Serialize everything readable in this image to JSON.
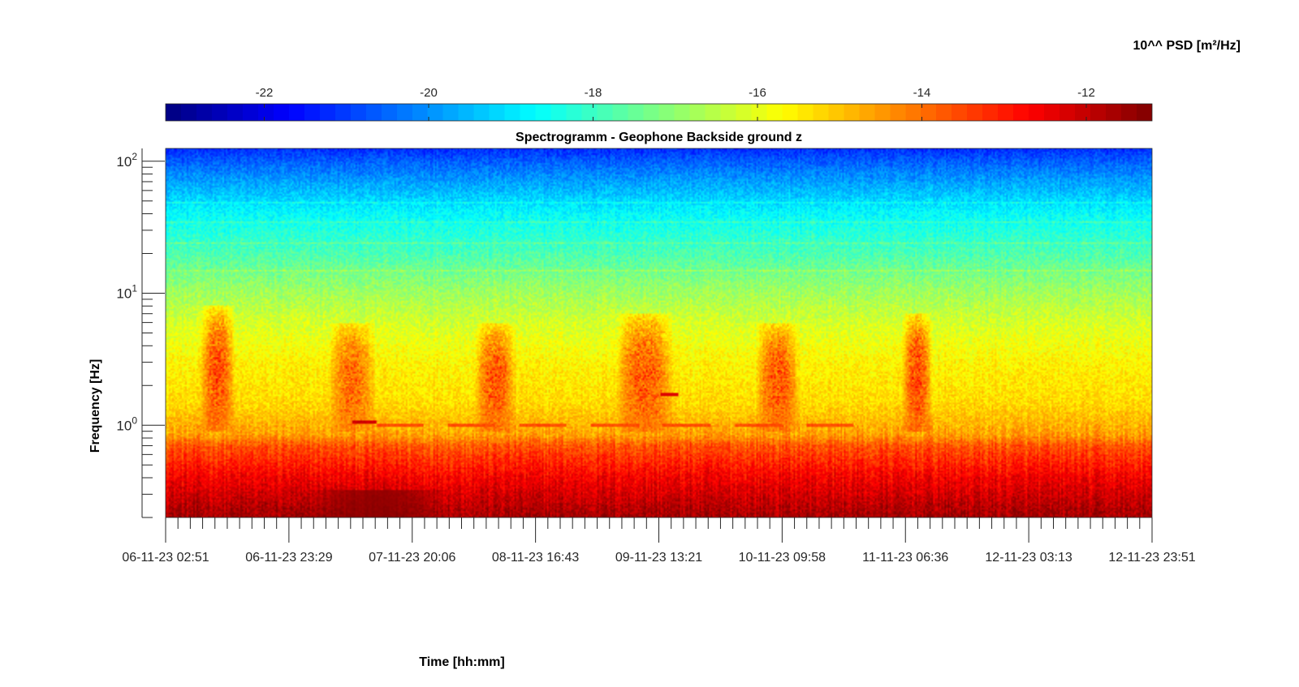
{
  "chart_data": {
    "type": "heatmap",
    "title": "Spectrogramm - Geophone Backside ground z",
    "xlabel": "Time [hh:mm]",
    "ylabel": "Frequency [Hz]",
    "colorbar_label": "10^^ PSD [m²/Hz]",
    "colormap": "jet",
    "clim": [
      -23.2,
      -11.2
    ],
    "colorbar_ticks": [
      -22,
      -20,
      -18,
      -16,
      -14,
      -12
    ],
    "colorbar_tick_labels": [
      "-22",
      "-20",
      "-18",
      "-16",
      "-14",
      "-12"
    ],
    "y_scale": "log",
    "ylim_hz": [
      0.2,
      125
    ],
    "y_major_ticks": [
      {
        "value": 1,
        "base": "10",
        "exp": "0"
      },
      {
        "value": 10,
        "base": "10",
        "exp": "1"
      },
      {
        "value": 100,
        "base": "10",
        "exp": "2"
      }
    ],
    "x_tick_labels": [
      "06-11-23 02:51",
      "06-11-23 23:29",
      "07-11-23 20:06",
      "08-11-23 16:43",
      "09-11-23 13:21",
      "10-11-23 09:58",
      "11-11-23 06:36",
      "12-11-23 03:13",
      "12-11-23 23:51"
    ],
    "x_tick_interval_hours": 20.625,
    "x_minor_ticks_per_major": 10,
    "background_profile": [
      {
        "f": 0.2,
        "psd": -11.6
      },
      {
        "f": 0.4,
        "psd": -12.6
      },
      {
        "f": 0.7,
        "psd": -13.7
      },
      {
        "f": 0.85,
        "psd": -14.6
      },
      {
        "f": 1.5,
        "psd": -15.3
      },
      {
        "f": 3,
        "psd": -15.6
      },
      {
        "f": 6,
        "psd": -16.2
      },
      {
        "f": 10,
        "psd": -16.8
      },
      {
        "f": 20,
        "psd": -17.8
      },
      {
        "f": 40,
        "psd": -18.7
      },
      {
        "f": 70,
        "psd": -19.8
      },
      {
        "f": 100,
        "psd": -20.6
      },
      {
        "f": 125,
        "psd": -21.2
      }
    ],
    "daytime_activity_bands": [
      {
        "start": "06-11-23 08:30",
        "end": "06-11-23 14:30",
        "f_hz": [
          1.0,
          8
        ],
        "peak_psd": -13.3
      },
      {
        "start": "07-11-23 06:00",
        "end": "07-11-23 14:00",
        "f_hz": [
          1.0,
          6
        ],
        "peak_psd": -13.7
      },
      {
        "start": "08-11-23 06:30",
        "end": "08-11-23 13:30",
        "f_hz": [
          1.0,
          6
        ],
        "peak_psd": -13.4
      },
      {
        "start": "09-11-23 06:00",
        "end": "09-11-23 16:00",
        "f_hz": [
          1.0,
          7
        ],
        "peak_psd": -13.4
      },
      {
        "start": "10-11-23 05:30",
        "end": "10-11-23 13:00",
        "f_hz": [
          1.0,
          6
        ],
        "peak_psd": -13.4
      },
      {
        "start": "11-11-23 06:00",
        "end": "11-11-23 11:00",
        "f_hz": [
          1.0,
          7
        ],
        "peak_psd": -13.1
      }
    ],
    "low_frequency_maximum": {
      "start": "07-11-23 08:00",
      "end": "07-11-23 20:00",
      "f_hz": [
        0.2,
        0.32
      ],
      "peak_psd": -11.3
    },
    "line_1hz_segments": [
      {
        "start": "07-11-23 10:00",
        "end": "07-11-23 14:00",
        "f_hz": 1.06,
        "psd": -12.2
      },
      {
        "start": "07-11-23 14:00",
        "end": "10-11-23 22:00",
        "f_hz": 1.0,
        "psd": -13.6
      }
    ],
    "spot": {
      "time": "09-11-23 15:00",
      "f_hz": 1.72,
      "psd": -12.3
    },
    "narrow_lines_hz": [
      15,
      24,
      35,
      48
    ]
  }
}
